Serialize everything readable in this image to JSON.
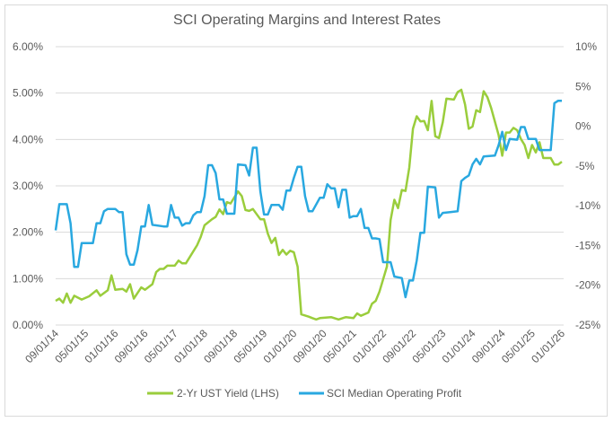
{
  "chart_data": {
    "type": "line",
    "title": "SCI Operating Margins and Interest Rates",
    "xlabel": "",
    "ylabel": "",
    "x_tick_labels": [
      "09/01/14",
      "05/01/15",
      "01/01/16",
      "09/01/16",
      "05/01/17",
      "01/01/18",
      "09/01/18",
      "05/01/19",
      "01/01/20",
      "09/01/20",
      "05/01/21",
      "01/01/22",
      "09/01/22",
      "05/01/23",
      "01/01/24",
      "09/01/24",
      "05/01/25",
      "01/01/26"
    ],
    "xlim": [
      "2014-09",
      "2026-01"
    ],
    "y_left": {
      "ticks": [
        "0.00%",
        "1.00%",
        "2.00%",
        "3.00%",
        "4.00%",
        "5.00%",
        "6.00%"
      ],
      "ylim": [
        0,
        6
      ],
      "unit": "%"
    },
    "y_right": {
      "ticks": [
        "-25%",
        "-20%",
        "-15%",
        "-10%",
        "-5%",
        "0%",
        "5%",
        "10%"
      ],
      "ylim": [
        -25,
        10
      ],
      "unit": "%"
    },
    "grid": true,
    "legend_position": "bottom",
    "series": [
      {
        "name": "2-Yr UST Yield (LHS)",
        "axis": "left",
        "color": "#9acd3c",
        "points": [
          [
            "2014-09",
            0.52
          ],
          [
            "2014-10",
            0.57
          ],
          [
            "2014-11",
            0.48
          ],
          [
            "2014-12",
            0.68
          ],
          [
            "2015-01",
            0.48
          ],
          [
            "2015-02",
            0.63
          ],
          [
            "2015-04",
            0.55
          ],
          [
            "2015-06",
            0.62
          ],
          [
            "2015-08",
            0.75
          ],
          [
            "2015-09",
            0.63
          ],
          [
            "2015-11",
            0.75
          ],
          [
            "2015-12",
            1.07
          ],
          [
            "2016-01",
            0.76
          ],
          [
            "2016-03",
            0.78
          ],
          [
            "2016-04",
            0.72
          ],
          [
            "2016-05",
            0.88
          ],
          [
            "2016-06",
            0.57
          ],
          [
            "2016-08",
            0.81
          ],
          [
            "2016-09",
            0.76
          ],
          [
            "2016-11",
            0.88
          ],
          [
            "2016-12",
            1.14
          ],
          [
            "2017-01",
            1.21
          ],
          [
            "2017-02",
            1.21
          ],
          [
            "2017-03",
            1.28
          ],
          [
            "2017-05",
            1.28
          ],
          [
            "2017-06",
            1.39
          ],
          [
            "2017-07",
            1.33
          ],
          [
            "2017-08",
            1.33
          ],
          [
            "2017-11",
            1.72
          ],
          [
            "2017-12",
            1.9
          ],
          [
            "2018-01",
            2.15
          ],
          [
            "2018-03",
            2.28
          ],
          [
            "2018-04",
            2.33
          ],
          [
            "2018-05",
            2.49
          ],
          [
            "2018-06",
            2.39
          ],
          [
            "2018-07",
            2.65
          ],
          [
            "2018-08",
            2.62
          ],
          [
            "2018-10",
            2.88
          ],
          [
            "2018-11",
            2.78
          ],
          [
            "2018-12",
            2.48
          ],
          [
            "2019-01",
            2.46
          ],
          [
            "2019-02",
            2.5
          ],
          [
            "2019-04",
            2.28
          ],
          [
            "2019-05",
            2.28
          ],
          [
            "2019-06",
            1.97
          ],
          [
            "2019-07",
            1.77
          ],
          [
            "2019-08",
            1.88
          ],
          [
            "2019-09",
            1.51
          ],
          [
            "2019-10",
            1.62
          ],
          [
            "2019-11",
            1.52
          ],
          [
            "2019-12",
            1.6
          ],
          [
            "2020-01",
            1.57
          ],
          [
            "2020-02",
            1.26
          ],
          [
            "2020-03",
            0.23
          ],
          [
            "2020-05",
            0.18
          ],
          [
            "2020-06",
            0.15
          ],
          [
            "2020-07",
            0.12
          ],
          [
            "2020-08",
            0.15
          ],
          [
            "2020-11",
            0.17
          ],
          [
            "2021-01",
            0.12
          ],
          [
            "2021-03",
            0.17
          ],
          [
            "2021-05",
            0.15
          ],
          [
            "2021-06",
            0.25
          ],
          [
            "2021-07",
            0.2
          ],
          [
            "2021-09",
            0.27
          ],
          [
            "2021-10",
            0.46
          ],
          [
            "2021-11",
            0.52
          ],
          [
            "2021-12",
            0.72
          ],
          [
            "2022-02",
            1.26
          ],
          [
            "2022-03",
            2.26
          ],
          [
            "2022-04",
            2.7
          ],
          [
            "2022-05",
            2.52
          ],
          [
            "2022-06",
            2.91
          ],
          [
            "2022-07",
            2.89
          ],
          [
            "2022-08",
            3.39
          ],
          [
            "2022-09",
            4.23
          ],
          [
            "2022-10",
            4.5
          ],
          [
            "2022-11",
            4.39
          ],
          [
            "2022-12",
            4.4
          ],
          [
            "2023-01",
            4.2
          ],
          [
            "2023-02",
            4.83
          ],
          [
            "2023-03",
            4.07
          ],
          [
            "2023-04",
            4.03
          ],
          [
            "2023-05",
            4.37
          ],
          [
            "2023-06",
            4.88
          ],
          [
            "2023-08",
            4.86
          ],
          [
            "2023-09",
            5.02
          ],
          [
            "2023-10",
            5.07
          ],
          [
            "2023-11",
            4.75
          ],
          [
            "2023-12",
            4.23
          ],
          [
            "2024-01",
            4.28
          ],
          [
            "2024-02",
            4.63
          ],
          [
            "2024-03",
            4.59
          ],
          [
            "2024-04",
            5.04
          ],
          [
            "2024-05",
            4.91
          ],
          [
            "2024-06",
            4.68
          ],
          [
            "2024-08",
            4.1
          ],
          [
            "2024-09",
            3.65
          ],
          [
            "2024-10",
            4.15
          ],
          [
            "2024-11",
            4.15
          ],
          [
            "2024-12",
            4.25
          ],
          [
            "2025-01",
            4.2
          ],
          [
            "2025-02",
            4.01
          ],
          [
            "2025-03",
            3.88
          ],
          [
            "2025-04",
            3.6
          ],
          [
            "2025-05",
            3.88
          ],
          [
            "2025-06",
            3.72
          ],
          [
            "2025-07",
            3.94
          ],
          [
            "2025-08",
            3.6
          ],
          [
            "2025-10",
            3.6
          ],
          [
            "2025-11",
            3.46
          ],
          [
            "2025-12",
            3.46
          ],
          [
            "2026-01",
            3.52
          ]
        ]
      },
      {
        "name": "SCI Median Operating Profit",
        "axis": "right",
        "color": "#29a8e0",
        "points": [
          [
            "2014-09",
            -13.1
          ],
          [
            "2014-10",
            -9.8
          ],
          [
            "2014-12",
            -9.8
          ],
          [
            "2015-01",
            -12.2
          ],
          [
            "2015-02",
            -17.7
          ],
          [
            "2015-03",
            -17.7
          ],
          [
            "2015-04",
            -14.7
          ],
          [
            "2015-07",
            -14.7
          ],
          [
            "2015-08",
            -12.2
          ],
          [
            "2015-09",
            -12.2
          ],
          [
            "2015-10",
            -10.7
          ],
          [
            "2015-11",
            -10.4
          ],
          [
            "2016-01",
            -10.4
          ],
          [
            "2016-02",
            -10.8
          ],
          [
            "2016-03",
            -10.8
          ],
          [
            "2016-04",
            -16.1
          ],
          [
            "2016-05",
            -17.4
          ],
          [
            "2016-06",
            -17.4
          ],
          [
            "2016-07",
            -15.6
          ],
          [
            "2016-08",
            -12.6
          ],
          [
            "2016-09",
            -12.6
          ],
          [
            "2016-10",
            -9.9
          ],
          [
            "2016-11",
            -12.4
          ],
          [
            "2017-02",
            -12.6
          ],
          [
            "2017-03",
            -12.6
          ],
          [
            "2017-04",
            -9.9
          ],
          [
            "2017-05",
            -11.5
          ],
          [
            "2017-06",
            -11.5
          ],
          [
            "2017-07",
            -12.5
          ],
          [
            "2017-08",
            -12.2
          ],
          [
            "2017-09",
            -12.2
          ],
          [
            "2017-10",
            -11.2
          ],
          [
            "2017-11",
            -10.8
          ],
          [
            "2017-12",
            -10.8
          ],
          [
            "2018-01",
            -8.8
          ],
          [
            "2018-02",
            -4.9
          ],
          [
            "2018-03",
            -4.9
          ],
          [
            "2018-04",
            -5.9
          ],
          [
            "2018-05",
            -9.2
          ],
          [
            "2018-06",
            -9.2
          ],
          [
            "2018-07",
            -11.0
          ],
          [
            "2018-09",
            -11.0
          ],
          [
            "2018-10",
            -4.8
          ],
          [
            "2018-12",
            -4.9
          ],
          [
            "2019-01",
            -6.2
          ],
          [
            "2019-02",
            -2.7
          ],
          [
            "2019-03",
            -2.7
          ],
          [
            "2019-04",
            -8.2
          ],
          [
            "2019-05",
            -11.1
          ],
          [
            "2019-06",
            -11.1
          ],
          [
            "2019-07",
            -9.9
          ],
          [
            "2019-09",
            -9.9
          ],
          [
            "2019-10",
            -10.5
          ],
          [
            "2019-11",
            -8.1
          ],
          [
            "2019-12",
            -8.1
          ],
          [
            "2020-01",
            -6.5
          ],
          [
            "2020-02",
            -5.1
          ],
          [
            "2020-03",
            -5.1
          ],
          [
            "2020-04",
            -8.8
          ],
          [
            "2020-05",
            -10.7
          ],
          [
            "2020-06",
            -10.7
          ],
          [
            "2020-08",
            -9.0
          ],
          [
            "2020-09",
            -9.0
          ],
          [
            "2020-10",
            -7.3
          ],
          [
            "2020-11",
            -7.8
          ],
          [
            "2020-12",
            -7.8
          ],
          [
            "2021-01",
            -10.2
          ],
          [
            "2021-02",
            -8.0
          ],
          [
            "2021-03",
            -8.0
          ],
          [
            "2021-04",
            -11.5
          ],
          [
            "2021-05",
            -11.3
          ],
          [
            "2021-06",
            -11.3
          ],
          [
            "2021-07",
            -10.4
          ],
          [
            "2021-08",
            -12.8
          ],
          [
            "2021-09",
            -12.8
          ],
          [
            "2021-10",
            -14.1
          ],
          [
            "2021-11",
            -14.1
          ],
          [
            "2021-12",
            -14.2
          ],
          [
            "2022-01",
            -17.1
          ],
          [
            "2022-03",
            -17.1
          ],
          [
            "2022-04",
            -18.9
          ],
          [
            "2022-06",
            -19.1
          ],
          [
            "2022-07",
            -21.5
          ],
          [
            "2022-08",
            -19.4
          ],
          [
            "2022-09",
            -19.4
          ],
          [
            "2022-10",
            -16.9
          ],
          [
            "2022-11",
            -13.4
          ],
          [
            "2022-12",
            -13.4
          ],
          [
            "2023-01",
            -7.6
          ],
          [
            "2023-03",
            -7.7
          ],
          [
            "2023-04",
            -11.5
          ],
          [
            "2023-05",
            -10.9
          ],
          [
            "2023-07",
            -10.8
          ],
          [
            "2023-09",
            -10.7
          ],
          [
            "2023-10",
            -6.9
          ],
          [
            "2023-11",
            -6.5
          ],
          [
            "2023-12",
            -6.2
          ],
          [
            "2024-01",
            -4.8
          ],
          [
            "2024-02",
            -4.1
          ],
          [
            "2024-03",
            -4.8
          ],
          [
            "2024-04",
            -3.8
          ],
          [
            "2024-07",
            -3.7
          ],
          [
            "2024-08",
            -2.4
          ],
          [
            "2024-09",
            -0.7
          ],
          [
            "2024-10",
            -3.0
          ],
          [
            "2024-11",
            -1.6
          ],
          [
            "2025-01",
            -1.7
          ],
          [
            "2025-02",
            -0.1
          ],
          [
            "2025-03",
            -0.1
          ],
          [
            "2025-04",
            -1.6
          ],
          [
            "2025-06",
            -1.6
          ],
          [
            "2025-07",
            -3.0
          ],
          [
            "2025-10",
            -3.0
          ],
          [
            "2025-11",
            2.9
          ],
          [
            "2025-12",
            3.2
          ],
          [
            "2026-01",
            3.2
          ]
        ]
      }
    ]
  }
}
